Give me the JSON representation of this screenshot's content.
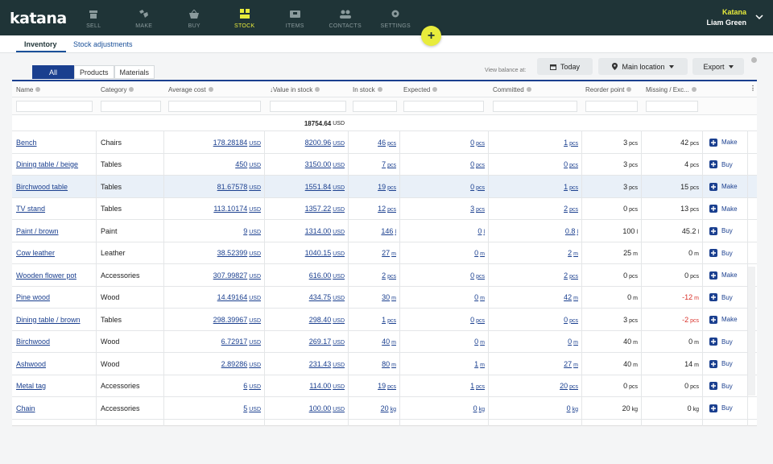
{
  "app": {
    "logo": "katana"
  },
  "nav": [
    {
      "label": "SELL",
      "icon": "store-icon",
      "active": false
    },
    {
      "label": "MAKE",
      "icon": "wrench-icon",
      "active": false
    },
    {
      "label": "BUY",
      "icon": "basket-icon",
      "active": false
    },
    {
      "label": "STOCK",
      "icon": "stock-grid-icon",
      "active": true
    },
    {
      "label": "ITEMS",
      "icon": "items-icon",
      "active": false
    },
    {
      "label": "CONTACTS",
      "icon": "contacts-icon",
      "active": false
    },
    {
      "label": "SETTINGS",
      "icon": "gear-icon",
      "active": false
    }
  ],
  "user": {
    "org": "Katana",
    "name": "Liam Green"
  },
  "fab": "+",
  "subtabs": {
    "inventory": "Inventory",
    "adjustments": "Stock adjustments"
  },
  "filters": {
    "all": "All",
    "products": "Products",
    "materials": "Materials"
  },
  "toolbar": {
    "view_balance_label": "View balance at:",
    "date_btn": "Today",
    "location_btn": "Main location",
    "export_btn": "Export"
  },
  "columns": {
    "name": "Name",
    "category": "Category",
    "avg_cost": "Average cost",
    "value": "Value in stock",
    "in_stock": "In stock",
    "expected": "Expected",
    "committed": "Committed",
    "reorder": "Reorder point",
    "missing": "Missing / Exc..."
  },
  "total": {
    "value": "18754.64",
    "unit": "USD"
  },
  "rows": [
    {
      "name": "Bench",
      "category": "Chairs",
      "avg_cost": "178.28184",
      "value": "8200.96",
      "in_stock": "46",
      "expected": "0",
      "committed": "1",
      "reorder": "3",
      "missing": "42",
      "unit": "pcs",
      "action": "Make"
    },
    {
      "name": "Dining table / beige",
      "category": "Tables",
      "avg_cost": "450",
      "value": "3150.00",
      "in_stock": "7",
      "expected": "0",
      "committed": "0",
      "reorder": "3",
      "missing": "4",
      "unit": "pcs",
      "action": "Buy"
    },
    {
      "name": "Birchwood table",
      "category": "Tables",
      "avg_cost": "81.67578",
      "value": "1551.84",
      "in_stock": "19",
      "expected": "0",
      "committed": "1",
      "reorder": "3",
      "missing": "15",
      "unit": "pcs",
      "action": "Make"
    },
    {
      "name": "TV stand",
      "category": "Tables",
      "avg_cost": "113.10174",
      "value": "1357.22",
      "in_stock": "12",
      "expected": "3",
      "committed": "2",
      "reorder": "0",
      "missing": "13",
      "unit": "pcs",
      "action": "Make"
    },
    {
      "name": "Paint / brown",
      "category": "Paint",
      "avg_cost": "9",
      "value": "1314.00",
      "in_stock": "146",
      "expected": "0",
      "committed": "0.8",
      "reorder": "100",
      "missing": "45.2",
      "unit": "l",
      "action": "Buy"
    },
    {
      "name": "Cow leather",
      "category": "Leather",
      "avg_cost": "38.52399",
      "value": "1040.15",
      "in_stock": "27",
      "expected": "0",
      "committed": "2",
      "reorder": "25",
      "missing": "0",
      "unit": "m",
      "action": "Buy"
    },
    {
      "name": "Wooden flower pot",
      "category": "Accessories",
      "avg_cost": "307.99827",
      "value": "616.00",
      "in_stock": "2",
      "expected": "0",
      "committed": "2",
      "reorder": "0",
      "missing": "0",
      "unit": "pcs",
      "action": "Make"
    },
    {
      "name": "Pine wood",
      "category": "Wood",
      "avg_cost": "14.49164",
      "value": "434.75",
      "in_stock": "30",
      "expected": "0",
      "committed": "42",
      "reorder": "0",
      "missing": "-12",
      "unit": "m",
      "action": "Buy"
    },
    {
      "name": "Dining table / brown",
      "category": "Tables",
      "avg_cost": "298.39967",
      "value": "298.40",
      "in_stock": "1",
      "expected": "0",
      "committed": "0",
      "reorder": "3",
      "missing": "-2",
      "unit": "pcs",
      "action": "Make"
    },
    {
      "name": "Birchwood",
      "category": "Wood",
      "avg_cost": "6.72917",
      "value": "269.17",
      "in_stock": "40",
      "expected": "0",
      "committed": "0",
      "reorder": "40",
      "missing": "0",
      "unit": "m",
      "action": "Buy"
    },
    {
      "name": "Ashwood",
      "category": "Wood",
      "avg_cost": "2.89286",
      "value": "231.43",
      "in_stock": "80",
      "expected": "1",
      "committed": "27",
      "reorder": "40",
      "missing": "14",
      "unit": "m",
      "action": "Buy"
    },
    {
      "name": "Metal tag",
      "category": "Accessories",
      "avg_cost": "6",
      "value": "114.00",
      "in_stock": "19",
      "expected": "1",
      "committed": "20",
      "reorder": "0",
      "missing": "0",
      "unit": "pcs",
      "action": "Buy"
    },
    {
      "name": "Chain",
      "category": "Accessories",
      "avg_cost": "5",
      "value": "100.00",
      "in_stock": "20",
      "expected": "0",
      "committed": "0",
      "reorder": "20",
      "missing": "0",
      "unit": "kg",
      "action": "Buy"
    }
  ],
  "currency": "USD",
  "colors": {
    "topbar": "#1f3437",
    "accent": "#e8ec3c",
    "link": "#1a3f8f",
    "negative": "#d9322b",
    "selected_row": "#e9f0f8"
  }
}
